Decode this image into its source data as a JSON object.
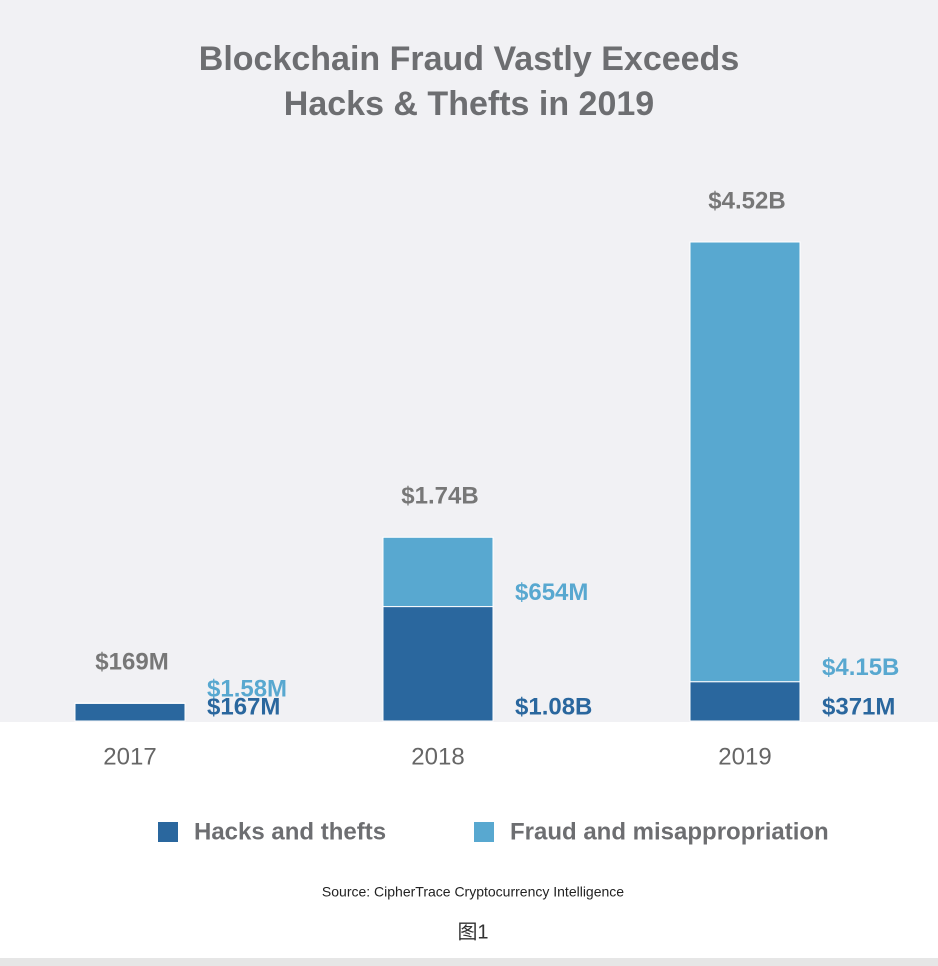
{
  "chart_data": {
    "type": "stacked-bar",
    "title": [
      "Blockchain Fraud Vastly Exceeds",
      "Hacks & Thefts in 2019"
    ],
    "categories": [
      "2017",
      "2018",
      "2019"
    ],
    "series": [
      {
        "name": "Hacks and thefts",
        "color": "#2a679e",
        "values": [
          167000000,
          1080000000,
          371000000
        ],
        "value_labels": [
          "$167M",
          "$1.08B",
          "$371M"
        ]
      },
      {
        "name": "Fraud and misappropriation",
        "color": "#58a8d0",
        "values": [
          1580000,
          654000000,
          4150000000
        ],
        "value_labels": [
          "$1.58M",
          "$654M",
          "$4.15B"
        ]
      }
    ],
    "totals": [
      169000000,
      1740000000,
      4520000000
    ],
    "total_labels": [
      "$169M",
      "$1.74B",
      "$4.52B"
    ],
    "source": "Source: CipherTrace Cryptocurrency Intelligence"
  },
  "caption": "图1"
}
